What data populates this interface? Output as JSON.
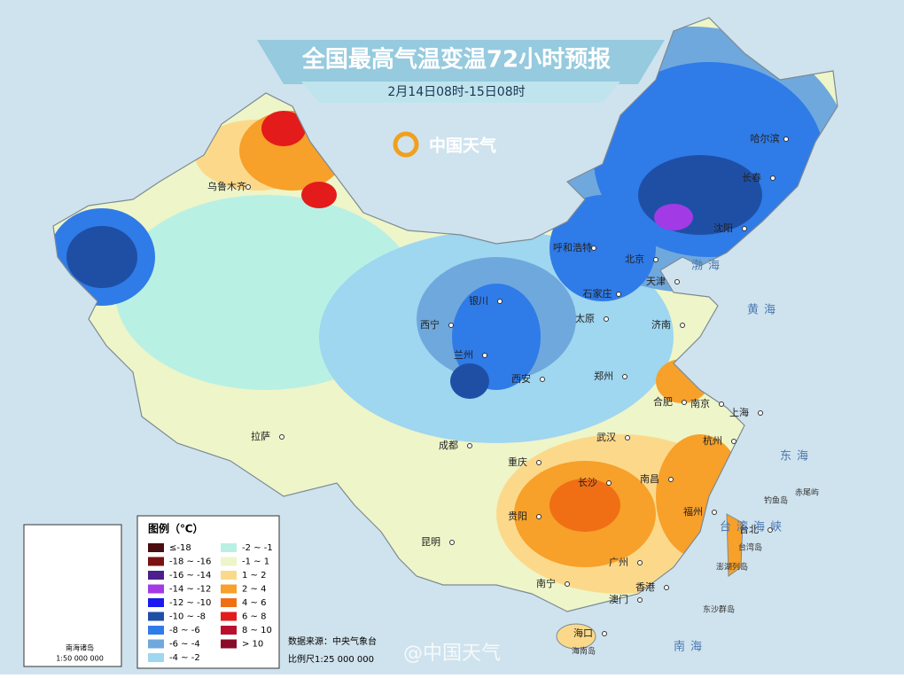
{
  "title": "全国最高气温变温72小时预报",
  "subtitle": "2月14日08时-15日08时",
  "brand": "中国天气",
  "legend": {
    "title": "图例（℃）",
    "items": [
      {
        "label": "≤-18",
        "color": "#4a0d10"
      },
      {
        "label": "-18 ~ -16",
        "color": "#7b1113"
      },
      {
        "label": "-16 ~ -14",
        "color": "#4b1f8c"
      },
      {
        "label": "-14 ~ -12",
        "color": "#a23ae6"
      },
      {
        "label": "-12 ~ -10",
        "color": "#1a1aee"
      },
      {
        "label": "-10 ~ -8",
        "color": "#1f4fa5"
      },
      {
        "label": "-8 ~ -6",
        "color": "#2f7be8"
      },
      {
        "label": "-6 ~ -4",
        "color": "#6fa8dc"
      },
      {
        "label": "-4 ~ -2",
        "color": "#9fd6f0"
      },
      {
        "label": "-2 ~ -1",
        "color": "#b9f0e4"
      },
      {
        "label": "-1 ~ 1",
        "color": "#eef5c8"
      },
      {
        "label": "1 ~ 2",
        "color": "#fcd98a"
      },
      {
        "label": "2 ~ 4",
        "color": "#f7a02a"
      },
      {
        "label": "4 ~ 6",
        "color": "#f06f14"
      },
      {
        "label": "6 ~ 8",
        "color": "#e31b1b"
      },
      {
        "label": "8 ~ 10",
        "color": "#b8102e"
      },
      {
        "label": "> 10",
        "color": "#8a0a2a"
      }
    ]
  },
  "cities": [
    "乌鲁木齐",
    "哈尔滨",
    "长春",
    "沈阳",
    "呼和浩特",
    "北京",
    "天津",
    "石家庄",
    "太原",
    "济南",
    "银川",
    "西宁",
    "兰州",
    "西安",
    "郑州",
    "合肥",
    "南京",
    "上海",
    "武汉",
    "杭州",
    "拉萨",
    "成都",
    "重庆",
    "长沙",
    "南昌",
    "贵阳",
    "福州",
    "台北",
    "昆明",
    "广州",
    "南宁",
    "香港",
    "澳门",
    "海口"
  ],
  "seas": [
    "渤海",
    "黄海",
    "东海",
    "台湾海峡",
    "南海"
  ],
  "islands": [
    "钓鱼岛",
    "赤尾屿",
    "澎湖列岛",
    "台湾岛",
    "东沙群岛",
    "海南岛"
  ],
  "source": "数据来源：中央气象台",
  "scale": "比例尺1:25 000 000",
  "watermark": "@中国天气",
  "inset": {
    "title": "南海诸岛",
    "scale": "1:50 000 000"
  }
}
